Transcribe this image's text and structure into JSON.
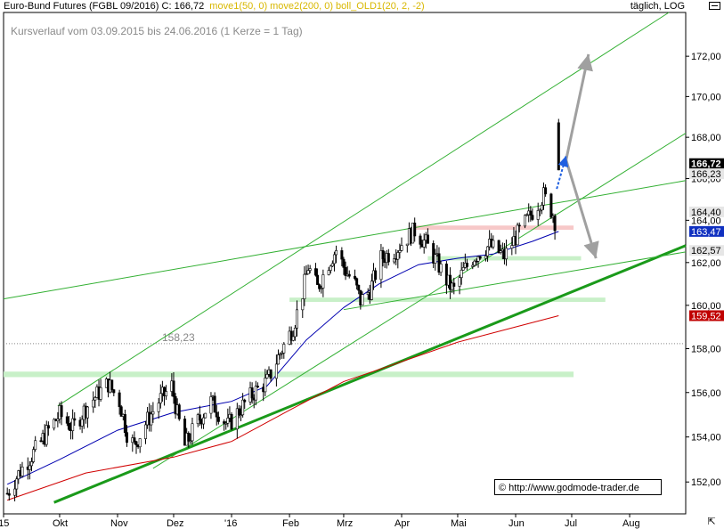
{
  "header": {
    "title": "Euro-Bund Futures (FGBL 09/2016)",
    "close": "C: 166,72",
    "indicators": [
      {
        "label": "move1(50, 0)",
        "color": "#d8b700"
      },
      {
        "label": "move2(200, 0)",
        "color": "#d8b700"
      },
      {
        "label": "boll_OLD1(20, 2, -2)",
        "color": "#d8b700"
      }
    ],
    "mode": "täglich, LOG"
  },
  "subtitle": "Kursverlauf vom 03.09.2015 bis 24.06.2016 (1 Kerze = 1 Tag)",
  "copyright": "© http://www.godmode-trader.de",
  "colors": {
    "candles": "#000000",
    "ma50": "#0000b0",
    "ma200": "#d00000",
    "trend": "#2ea82e",
    "support_zone": "#c8f0c8",
    "resistance_zone": "#f7c8c8",
    "arrow": "#a0a0a0",
    "projection": "#1f5fe0"
  },
  "chart_data": {
    "type": "candlestick",
    "scale": "log",
    "ylim": [
      150.6,
      174.2
    ],
    "xlim": [
      "2015-09-01",
      "2016-08-31"
    ],
    "y_ticks": [
      152,
      154,
      156,
      158,
      160,
      162,
      164,
      166,
      168,
      170,
      172
    ],
    "y_tick_labels": [
      "152,00",
      "154,00",
      "156,00",
      "158,00",
      "160,00",
      "162,00",
      "164,00",
      "166,00",
      "168,00",
      "170,00",
      "172,00"
    ],
    "x_ticks": [
      {
        "date": "2015-09-01",
        "label": "'15"
      },
      {
        "date": "2015-10-01",
        "label": "Okt"
      },
      {
        "date": "2015-11-01",
        "label": "Nov"
      },
      {
        "date": "2015-12-01",
        "label": "Dez"
      },
      {
        "date": "2016-01-01",
        "label": "'16"
      },
      {
        "date": "2016-02-01",
        "label": "Feb"
      },
      {
        "date": "2016-03-01",
        "label": "Mrz"
      },
      {
        "date": "2016-04-01",
        "label": "Apr"
      },
      {
        "date": "2016-05-01",
        "label": "Mai"
      },
      {
        "date": "2016-06-01",
        "label": "Jun"
      },
      {
        "date": "2016-07-01",
        "label": "Jul"
      },
      {
        "date": "2016-08-01",
        "label": "Aug"
      }
    ],
    "price_path": [
      [
        "2015-09-03",
        151.5
      ],
      [
        "2015-09-10",
        152.5
      ],
      [
        "2015-09-18",
        153.4
      ],
      [
        "2015-09-25",
        154.3
      ],
      [
        "2015-10-01",
        155.0
      ],
      [
        "2015-10-08",
        154.4
      ],
      [
        "2015-10-15",
        155.3
      ],
      [
        "2015-10-22",
        156.0
      ],
      [
        "2015-10-27",
        156.4
      ],
      [
        "2015-11-02",
        155.6
      ],
      [
        "2015-11-06",
        154.2
      ],
      [
        "2015-11-10",
        153.6
      ],
      [
        "2015-11-16",
        154.6
      ],
      [
        "2015-11-23",
        155.6
      ],
      [
        "2015-11-30",
        156.3
      ],
      [
        "2015-12-03",
        155.0
      ],
      [
        "2015-12-07",
        153.6
      ],
      [
        "2015-12-14",
        154.7
      ],
      [
        "2015-12-21",
        155.6
      ],
      [
        "2015-12-30",
        154.5
      ],
      [
        "2016-01-06",
        155.3
      ],
      [
        "2016-01-13",
        156.0
      ],
      [
        "2016-01-20",
        156.5
      ],
      [
        "2016-01-27",
        157.8
      ],
      [
        "2016-02-03",
        159.0
      ],
      [
        "2016-02-08",
        160.6
      ],
      [
        "2016-02-11",
        161.8
      ],
      [
        "2016-02-16",
        160.8
      ],
      [
        "2016-02-22",
        162.0
      ],
      [
        "2016-02-26",
        162.6
      ],
      [
        "2016-03-02",
        161.6
      ],
      [
        "2016-03-07",
        161.0
      ],
      [
        "2016-03-10",
        160.2
      ],
      [
        "2016-03-15",
        160.7
      ],
      [
        "2016-03-21",
        162.2
      ],
      [
        "2016-03-29",
        162.6
      ],
      [
        "2016-04-04",
        163.2
      ],
      [
        "2016-04-08",
        163.5
      ],
      [
        "2016-04-14",
        162.9
      ],
      [
        "2016-04-20",
        162.0
      ],
      [
        "2016-04-26",
        161.0
      ],
      [
        "2016-04-29",
        160.7
      ],
      [
        "2016-05-04",
        161.6
      ],
      [
        "2016-05-10",
        162.3
      ],
      [
        "2016-05-18",
        162.8
      ],
      [
        "2016-05-26",
        162.3
      ],
      [
        "2016-06-01",
        163.2
      ],
      [
        "2016-06-07",
        164.0
      ],
      [
        "2016-06-13",
        164.8
      ],
      [
        "2016-06-16",
        165.2
      ],
      [
        "2016-06-21",
        164.3
      ],
      [
        "2016-06-23",
        163.6
      ]
    ],
    "last_candle": {
      "date": "2016-06-24",
      "open": 166.3,
      "high": 168.9,
      "low": 166.4,
      "close": 166.72
    },
    "ma50": [
      [
        "2015-09-03",
        151.9
      ],
      [
        "2015-10-01",
        153.0
      ],
      [
        "2015-11-01",
        154.3
      ],
      [
        "2015-12-01",
        155.1
      ],
      [
        "2016-01-01",
        155.6
      ],
      [
        "2016-01-20",
        156.3
      ],
      [
        "2016-02-10",
        158.4
      ],
      [
        "2016-03-01",
        159.9
      ],
      [
        "2016-03-20",
        161.0
      ],
      [
        "2016-04-10",
        161.9
      ],
      [
        "2016-05-01",
        162.2
      ],
      [
        "2016-05-20",
        162.4
      ],
      [
        "2016-06-10",
        163.0
      ],
      [
        "2016-06-24",
        163.47
      ]
    ],
    "ma200": [
      [
        "2015-09-03",
        151.2
      ],
      [
        "2015-10-15",
        152.4
      ],
      [
        "2015-12-01",
        153.1
      ],
      [
        "2016-01-01",
        153.8
      ],
      [
        "2016-02-01",
        155.2
      ],
      [
        "2016-03-01",
        156.5
      ],
      [
        "2016-04-01",
        157.4
      ],
      [
        "2016-05-01",
        158.3
      ],
      [
        "2016-06-01",
        159.0
      ],
      [
        "2016-06-24",
        159.52
      ]
    ],
    "trend_lines": [
      {
        "name": "long-support",
        "width": 3,
        "points": [
          [
            "2015-09-28",
            151.1
          ],
          [
            "2016-08-31",
            162.8
          ]
        ]
      },
      {
        "name": "channel-top",
        "width": 1,
        "points": [
          [
            "2015-09-30",
            155.4
          ],
          [
            "2016-08-22",
            174.2
          ]
        ]
      },
      {
        "name": "inner-channel",
        "width": 1,
        "points": [
          [
            "2015-11-20",
            152.6
          ],
          [
            "2016-08-31",
            168.2
          ]
        ]
      },
      {
        "name": "wedge-upper",
        "width": 1,
        "points": [
          [
            "2015-09-01",
            160.3
          ],
          [
            "2016-08-31",
            165.9
          ]
        ]
      },
      {
        "name": "wedge-lower",
        "width": 1,
        "points": [
          [
            "2016-03-01",
            159.8
          ],
          [
            "2016-08-31",
            162.5
          ]
        ]
      }
    ],
    "zones": [
      {
        "kind": "support",
        "from": "2015-09-01",
        "to": "2016-07-02",
        "low": 156.7,
        "high": 156.95
      },
      {
        "kind": "support",
        "from": "2016-02-01",
        "to": "2016-07-19",
        "low": 160.16,
        "high": 160.36
      },
      {
        "kind": "support",
        "from": "2016-04-15",
        "to": "2016-07-06",
        "low": 162.1,
        "high": 162.3
      },
      {
        "kind": "resistance",
        "from": "2016-04-08",
        "to": "2016-07-02",
        "low": 163.55,
        "high": 163.75
      }
    ],
    "reference_line": {
      "value": 158.23,
      "label": "158,23"
    },
    "arrows": [
      {
        "from": [
          "2016-06-28",
          166.9
        ],
        "to": [
          "2016-07-10",
          172.1
        ]
      },
      {
        "from": [
          "2016-06-28",
          166.9
        ],
        "to": [
          "2016-07-14",
          162.2
        ]
      }
    ],
    "projection_arrow": {
      "from": [
        "2016-06-23",
        165.5
      ],
      "to": [
        "2016-06-28",
        167.1
      ]
    },
    "price_labels": [
      {
        "value": 166.72,
        "label": "166,72",
        "style": "dark"
      },
      {
        "value": 166.23,
        "label": "166,23",
        "style": "grey"
      },
      {
        "value": 164.4,
        "label": "164,40",
        "style": "grey"
      },
      {
        "value": 163.47,
        "label": "163,47",
        "style": "blue"
      },
      {
        "value": 162.57,
        "label": "162,57",
        "style": "grey"
      },
      {
        "value": 159.52,
        "label": "159,52",
        "style": "red"
      }
    ]
  }
}
